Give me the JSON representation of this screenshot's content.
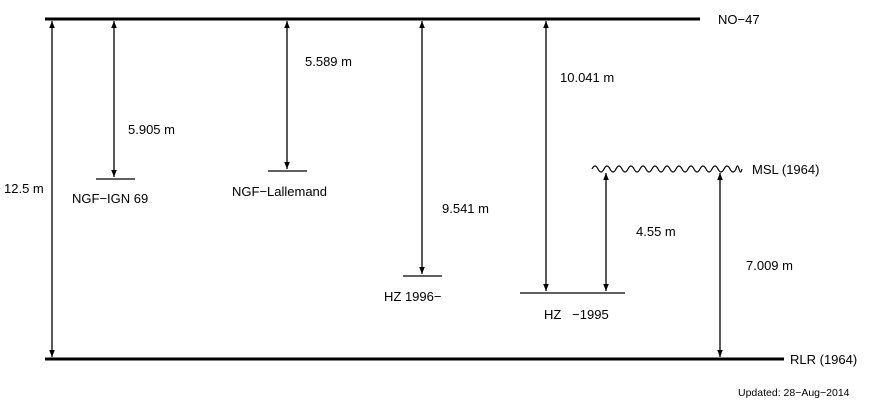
{
  "levels": {
    "no47": "NO−47",
    "ngf_ign69": "NGF−IGN 69",
    "ngf_lallemand": "NGF−Lallemand",
    "hz1996": "HZ 1996−",
    "hz1995": "HZ   −1995",
    "msl1964": "MSL (1964)",
    "rlr1964": "RLR (1964)"
  },
  "distances": {
    "no47_to_rlr": "12.5 m",
    "no47_to_ngf_ign69": "5.905 m",
    "no47_to_ngf_lallemand": "5.589 m",
    "no47_to_hz1996": "9.541 m",
    "no47_to_hz1995": "10.041 m",
    "hz1995_to_msl": "4.55 m",
    "rlr_to_msl": "7.009 m"
  },
  "footer": {
    "updated": "Updated: 28−Aug−2014"
  },
  "colors": {
    "ink": "#000000",
    "background": "#ffffff"
  }
}
